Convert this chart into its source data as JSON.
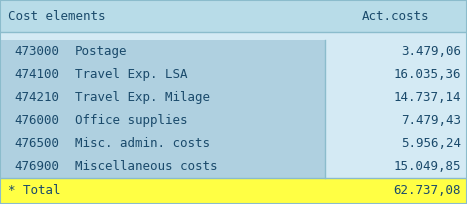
{
  "header": [
    "Cost elements",
    "Act.costs"
  ],
  "rows": [
    [
      "473000",
      "Postage",
      "3.479,06"
    ],
    [
      "474100",
      "Travel Exp. LSA",
      "16.035,36"
    ],
    [
      "474210",
      "Travel Exp. Milage",
      "14.737,14"
    ],
    [
      "476000",
      "Office supplies",
      "7.479,43"
    ],
    [
      "476500",
      "Misc. admin. costs",
      "5.956,24"
    ],
    [
      "476900",
      "Miscellaneous costs",
      "15.049,85"
    ]
  ],
  "total_label": "* Total",
  "total_value": "62.737,08",
  "header_bg": "#b8dce8",
  "row_bg_left": "#afd0e0",
  "row_bg_right": "#d4eaf4",
  "gap_bg": "#d4eaf4",
  "total_bg": "#ffff44",
  "border_color": "#8bbccc",
  "text_color": "#1a4a6b",
  "font_size": 9.0,
  "col_split": 0.695,
  "fig_width": 4.67,
  "fig_height": 2.04,
  "dpi": 100
}
